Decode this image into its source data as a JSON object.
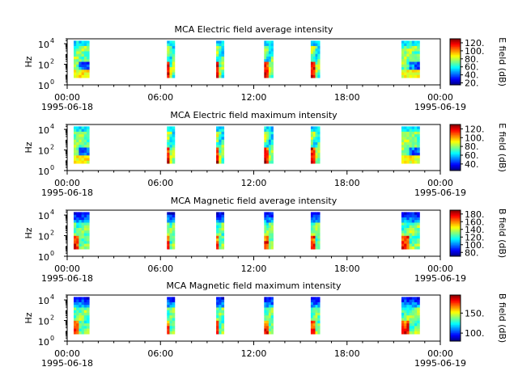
{
  "chart_data": [
    {
      "type": "heatmap",
      "title": "MCA  Electric field average intensity",
      "ylabel": "Hz",
      "y_scale": "log",
      "ylim": [
        1,
        30000
      ],
      "y_ticks": [
        "10",
        "10",
        "10"
      ],
      "y_tick_exp": [
        "0",
        "2",
        "4"
      ],
      "xlim": [
        "1995-06-18T00:00",
        "1995-06-19T00:00"
      ],
      "x_ticks": [
        "00:00",
        "06:00",
        "12:00",
        "18:00",
        "00:00"
      ],
      "x_tick_dates": [
        "1995-06-18",
        "",
        "",
        "",
        "1995-06-19"
      ],
      "colorbar": {
        "label": "E field (dB)",
        "range": [
          15,
          130
        ],
        "ticks": [
          "20.",
          "40.",
          "60.",
          "80.",
          "100.",
          "120."
        ]
      },
      "segments": [
        {
          "start": "00:25",
          "end": "01:25",
          "profile": "dense"
        },
        {
          "start": "06:25",
          "end": "06:55",
          "profile": "pass"
        },
        {
          "start": "09:35",
          "end": "10:05",
          "profile": "pass"
        },
        {
          "start": "12:40",
          "end": "13:15",
          "profile": "pass"
        },
        {
          "start": "15:40",
          "end": "16:15",
          "profile": "pass"
        },
        {
          "start": "21:30",
          "end": "22:40",
          "profile": "dense"
        }
      ]
    },
    {
      "type": "heatmap",
      "title": "MCA  Electric field maximum intensity",
      "ylabel": "Hz",
      "y_scale": "log",
      "ylim": [
        1,
        30000
      ],
      "y_ticks": [
        "10",
        "10",
        "10"
      ],
      "y_tick_exp": [
        "0",
        "2",
        "4"
      ],
      "xlim": [
        "1995-06-18T00:00",
        "1995-06-19T00:00"
      ],
      "x_ticks": [
        "00:00",
        "06:00",
        "12:00",
        "18:00",
        "00:00"
      ],
      "x_tick_dates": [
        "1995-06-18",
        "",
        "",
        "",
        "1995-06-19"
      ],
      "colorbar": {
        "label": "E field (dB)",
        "range": [
          25,
          130
        ],
        "ticks": [
          "40.",
          "60.",
          "80.",
          "100.",
          "120."
        ]
      },
      "segments": [
        {
          "start": "00:25",
          "end": "01:25",
          "profile": "dense"
        },
        {
          "start": "06:25",
          "end": "06:55",
          "profile": "pass"
        },
        {
          "start": "09:35",
          "end": "10:05",
          "profile": "pass"
        },
        {
          "start": "12:40",
          "end": "13:15",
          "profile": "pass"
        },
        {
          "start": "15:40",
          "end": "16:15",
          "profile": "pass"
        },
        {
          "start": "21:30",
          "end": "22:40",
          "profile": "dense"
        }
      ]
    },
    {
      "type": "heatmap",
      "title": "MCA  Magnetic field average intensity",
      "ylabel": "Hz",
      "y_scale": "log",
      "ylim": [
        1,
        30000
      ],
      "y_ticks": [
        "10",
        "10",
        "10"
      ],
      "y_tick_exp": [
        "0",
        "2",
        "4"
      ],
      "xlim": [
        "1995-06-18T00:00",
        "1995-06-19T00:00"
      ],
      "x_ticks": [
        "00:00",
        "06:00",
        "12:00",
        "18:00",
        "00:00"
      ],
      "x_tick_dates": [
        "1995-06-18",
        "",
        "",
        "",
        "1995-06-19"
      ],
      "colorbar": {
        "label": "B field (dB)",
        "range": [
          70,
          190
        ],
        "ticks": [
          "80.",
          "100.",
          "120.",
          "140.",
          "160.",
          "180."
        ]
      },
      "segments": [
        {
          "start": "00:25",
          "end": "01:25",
          "profile": "mag"
        },
        {
          "start": "06:25",
          "end": "06:55",
          "profile": "mag"
        },
        {
          "start": "09:35",
          "end": "10:05",
          "profile": "mag"
        },
        {
          "start": "12:40",
          "end": "13:15",
          "profile": "mag"
        },
        {
          "start": "15:40",
          "end": "16:15",
          "profile": "mag"
        },
        {
          "start": "21:30",
          "end": "22:40",
          "profile": "mag"
        }
      ]
    },
    {
      "type": "heatmap",
      "title": "MCA  Magnetic field maximum intensity",
      "ylabel": "Hz",
      "y_scale": "log",
      "ylim": [
        1,
        30000
      ],
      "y_ticks": [
        "10",
        "10",
        "10"
      ],
      "y_tick_exp": [
        "0",
        "2",
        "4"
      ],
      "xlim": [
        "1995-06-18T00:00",
        "1995-06-19T00:00"
      ],
      "x_ticks": [
        "00:00",
        "06:00",
        "12:00",
        "18:00",
        "00:00"
      ],
      "x_tick_dates": [
        "1995-06-18",
        "",
        "",
        "",
        "1995-06-19"
      ],
      "colorbar": {
        "label": "B field (dB)",
        "range": [
          80,
          195
        ],
        "ticks": [
          "100.",
          "150."
        ]
      },
      "segments": [
        {
          "start": "00:25",
          "end": "01:25",
          "profile": "mag"
        },
        {
          "start": "06:25",
          "end": "06:55",
          "profile": "mag"
        },
        {
          "start": "09:35",
          "end": "10:05",
          "profile": "mag"
        },
        {
          "start": "12:40",
          "end": "13:15",
          "profile": "mag"
        },
        {
          "start": "15:40",
          "end": "16:15",
          "profile": "mag"
        },
        {
          "start": "21:30",
          "end": "22:40",
          "profile": "mag"
        }
      ]
    }
  ]
}
